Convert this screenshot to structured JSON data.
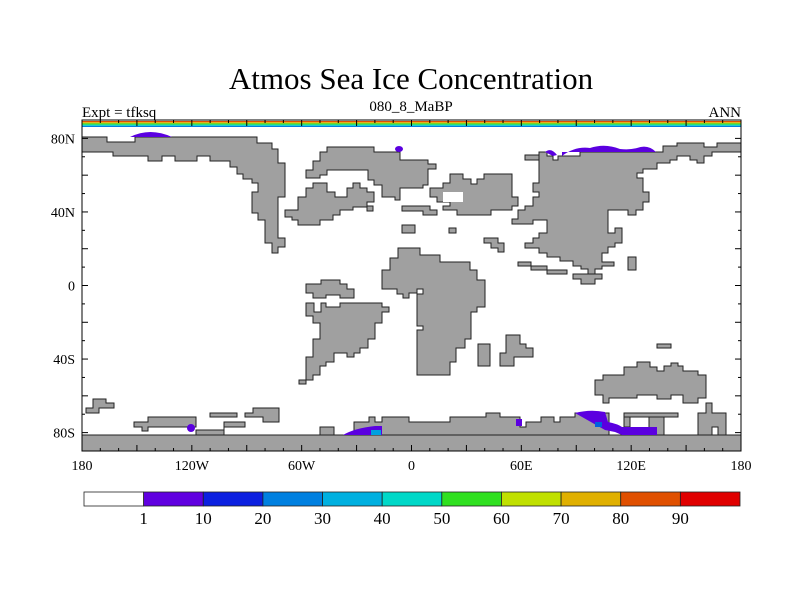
{
  "title": "Atmos Sea Ice Concentration",
  "left_subtitle": "Expt = tfksq",
  "center_subtitle": "080_8_MaBP",
  "right_subtitle": "ANN",
  "lat_labels": [
    "80N",
    "40N",
    "0",
    "40S",
    "80S"
  ],
  "lat_values": [
    80,
    40,
    0,
    -40,
    -80
  ],
  "lon_labels": [
    "180",
    "120W",
    "60W",
    "0",
    "60E",
    "120E",
    "180"
  ],
  "lon_values": [
    -180,
    -120,
    -60,
    0,
    60,
    120,
    180
  ],
  "colorbar": {
    "labels": [
      "1",
      "10",
      "20",
      "30",
      "40",
      "50",
      "60",
      "70",
      "80",
      "90"
    ],
    "colors": [
      "#ffffff",
      "#6000e0",
      "#0c20e0",
      "#0080e0",
      "#00b0e0",
      "#00d8c8",
      "#30e020",
      "#c0e000",
      "#e0b000",
      "#e05000",
      "#e00000"
    ]
  },
  "land_color": "#a0a0a0",
  "ice_color": "#5b00e0"
}
